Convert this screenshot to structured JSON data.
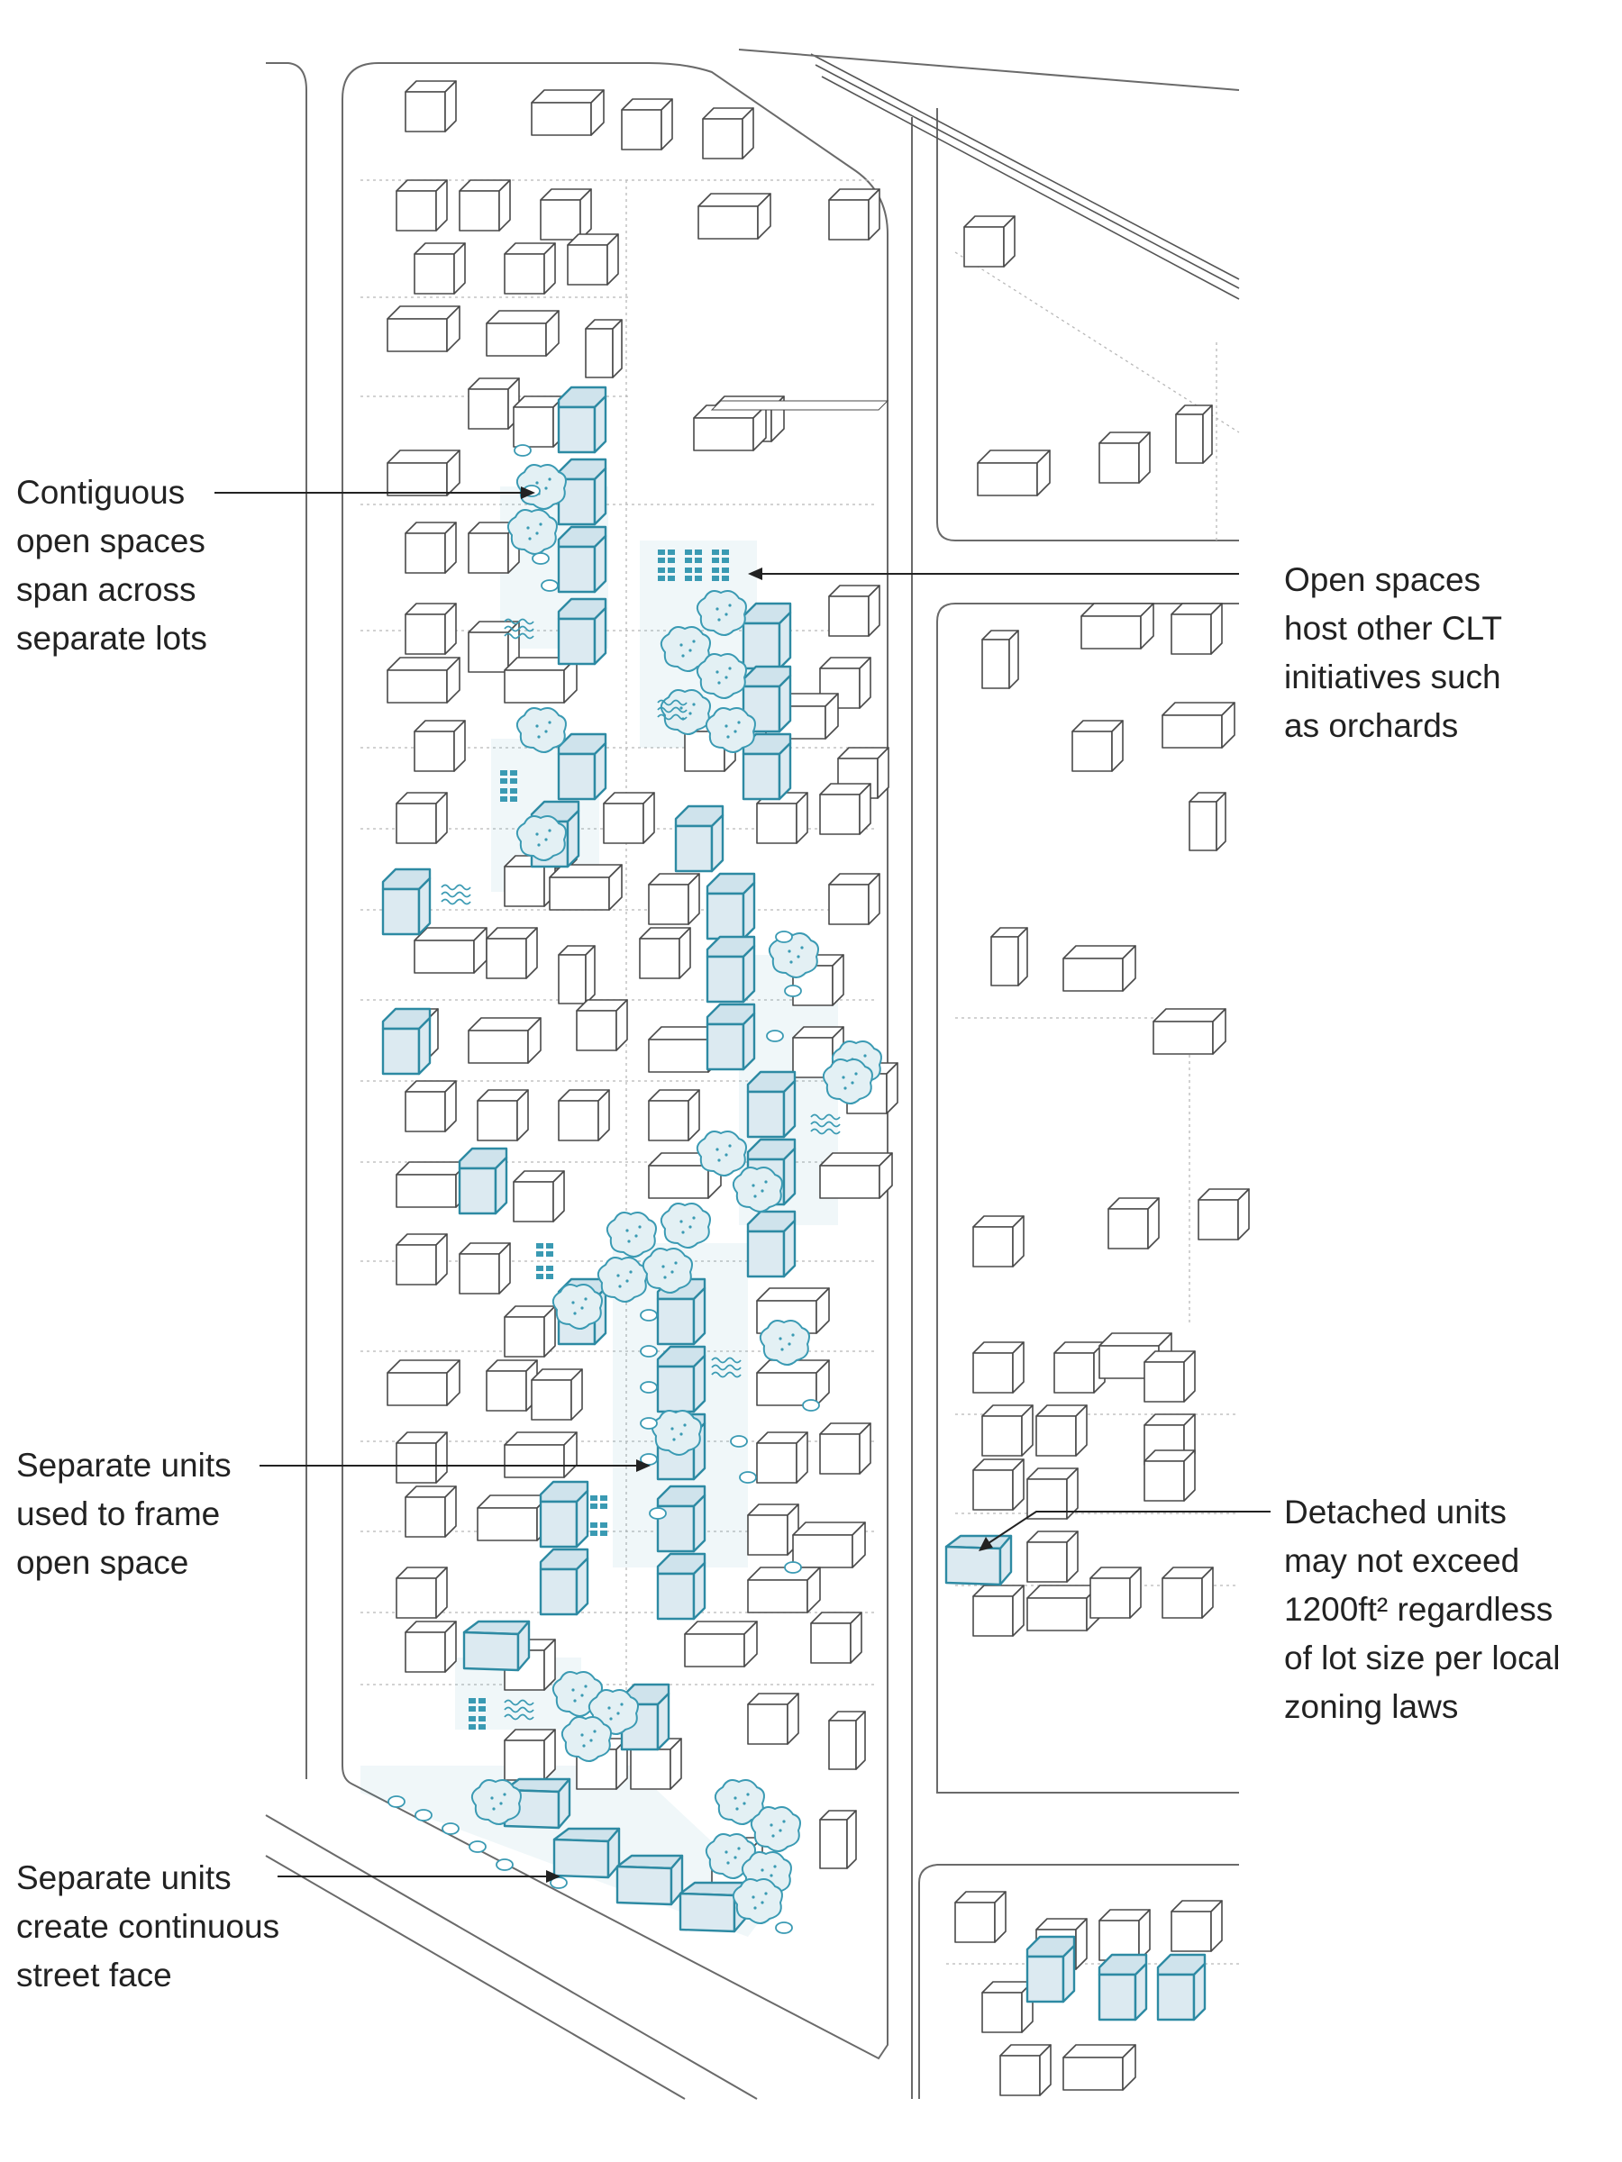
{
  "annotations": [
    {
      "id": "contiguous",
      "lines": [
        "Contiguous",
        "open spaces",
        "span across",
        "separate lots"
      ]
    },
    {
      "id": "orchards",
      "lines": [
        "Open spaces",
        "host other CLT",
        "initiatives such",
        "as orchards"
      ]
    },
    {
      "id": "frame",
      "lines": [
        "Separate units",
        "used to frame",
        "open space"
      ]
    },
    {
      "id": "detached",
      "lines": [
        "Detached units",
        "may not exceed",
        "1200ft² regardless",
        "of lot size per local",
        "zoning laws"
      ]
    },
    {
      "id": "streetface",
      "lines": [
        "Separate units",
        "create continuous",
        "street face"
      ]
    }
  ],
  "colors": {
    "accent": "#2d8aa3",
    "unit_fill": "#dceaf1",
    "building_stroke": "#4a4a4a",
    "text": "#222222"
  },
  "legend_semantics": {
    "highlighted_units": "blue-outlined detached units",
    "plain_buildings": "existing buildings (gray outline)",
    "vegetation": "trees, shrubs, crop beds in blue"
  }
}
